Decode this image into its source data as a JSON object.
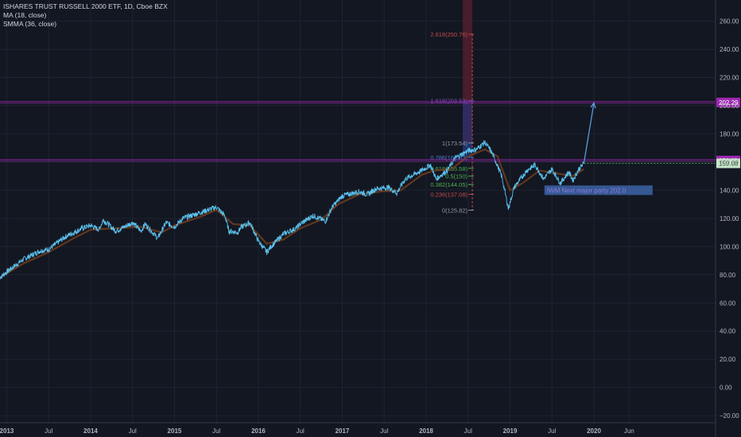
{
  "chart_data": {
    "type": "line",
    "title": "ISHARES TRUST RUSSELL 2000 ETF, 1D, Cboe BZX",
    "indicators": [
      {
        "name": "MA (18, close)",
        "color": "#6b3b1e"
      },
      {
        "name": "SMMA (36, close)",
        "color": "#8b5a2b"
      }
    ],
    "ylim": [
      -25,
      275
    ],
    "y_ticks": [
      "260.00",
      "240.00",
      "220.00",
      "200.00",
      "180.00",
      "160.00",
      "140.00",
      "120.00",
      "100.00",
      "80.00",
      "60.00",
      "40.00",
      "20.00",
      "0.00",
      "−20.00"
    ],
    "y_tick_values": [
      260,
      240,
      220,
      200,
      180,
      160,
      140,
      120,
      100,
      80,
      60,
      40,
      20,
      0,
      -20
    ],
    "xlim": [
      2012.92,
      2021.45
    ],
    "x_ticks": [
      {
        "label": "2013",
        "t": 2013.0,
        "bold": true
      },
      {
        "label": "Jul",
        "t": 2013.5,
        "bold": false
      },
      {
        "label": "2014",
        "t": 2014.0,
        "bold": true
      },
      {
        "label": "Jul",
        "t": 2014.5,
        "bold": false
      },
      {
        "label": "2015",
        "t": 2015.0,
        "bold": true
      },
      {
        "label": "Jul",
        "t": 2015.5,
        "bold": false
      },
      {
        "label": "2016",
        "t": 2016.0,
        "bold": true
      },
      {
        "label": "Jul",
        "t": 2016.5,
        "bold": false
      },
      {
        "label": "2017",
        "t": 2017.0,
        "bold": true
      },
      {
        "label": "Jul",
        "t": 2017.5,
        "bold": false
      },
      {
        "label": "2018",
        "t": 2018.0,
        "bold": true
      },
      {
        "label": "Jul",
        "t": 2018.5,
        "bold": false
      },
      {
        "label": "2019",
        "t": 2019.0,
        "bold": true
      },
      {
        "label": "Jul",
        "t": 2019.5,
        "bold": false
      },
      {
        "label": "2020",
        "t": 2020.0,
        "bold": true
      },
      {
        "label": "Jun",
        "t": 2020.42,
        "bold": false
      }
    ],
    "price_series": {
      "name": "IWM",
      "color": "#5bc0eb",
      "points": [
        [
          2012.92,
          78
        ],
        [
          2013.0,
          82
        ],
        [
          2013.2,
          91
        ],
        [
          2013.4,
          97
        ],
        [
          2013.5,
          98
        ],
        [
          2013.7,
          107
        ],
        [
          2013.9,
          113
        ],
        [
          2014.0,
          115
        ],
        [
          2014.1,
          112
        ],
        [
          2014.15,
          119
        ],
        [
          2014.3,
          111
        ],
        [
          2014.4,
          114
        ],
        [
          2014.5,
          117
        ],
        [
          2014.6,
          111
        ],
        [
          2014.65,
          116
        ],
        [
          2014.8,
          106
        ],
        [
          2014.9,
          117
        ],
        [
          2015.0,
          114
        ],
        [
          2015.1,
          120
        ],
        [
          2015.3,
          124
        ],
        [
          2015.45,
          127
        ],
        [
          2015.5,
          128
        ],
        [
          2015.6,
          122
        ],
        [
          2015.65,
          111
        ],
        [
          2015.75,
          110
        ],
        [
          2015.8,
          114
        ],
        [
          2015.9,
          117
        ],
        [
          2016.0,
          104
        ],
        [
          2016.1,
          96
        ],
        [
          2016.15,
          100
        ],
        [
          2016.3,
          109
        ],
        [
          2016.45,
          113
        ],
        [
          2016.5,
          116
        ],
        [
          2016.65,
          122
        ],
        [
          2016.8,
          118
        ],
        [
          2016.88,
          128
        ],
        [
          2017.0,
          136
        ],
        [
          2017.2,
          139
        ],
        [
          2017.3,
          137
        ],
        [
          2017.4,
          141
        ],
        [
          2017.55,
          142
        ],
        [
          2017.65,
          138
        ],
        [
          2017.75,
          148
        ],
        [
          2017.95,
          154
        ],
        [
          2018.05,
          158
        ],
        [
          2018.12,
          148
        ],
        [
          2018.25,
          154
        ],
        [
          2018.35,
          163
        ],
        [
          2018.5,
          168
        ],
        [
          2018.6,
          169
        ],
        [
          2018.7,
          174
        ],
        [
          2018.77,
          168
        ],
        [
          2018.82,
          162
        ],
        [
          2018.9,
          150
        ],
        [
          2018.98,
          127
        ],
        [
          2019.05,
          142
        ],
        [
          2019.2,
          154
        ],
        [
          2019.3,
          158
        ],
        [
          2019.4,
          148
        ],
        [
          2019.5,
          155
        ],
        [
          2019.6,
          145
        ],
        [
          2019.7,
          153
        ],
        [
          2019.75,
          147
        ],
        [
          2019.82,
          155
        ],
        [
          2019.88,
          159
        ]
      ]
    },
    "ma18": {
      "name": "MA (18, close)",
      "color": "#6b3b1e",
      "points": [
        [
          2012.92,
          78
        ],
        [
          2013.2,
          88
        ],
        [
          2013.5,
          96
        ],
        [
          2013.8,
          106
        ],
        [
          2014.0,
          112
        ],
        [
          2014.3,
          113
        ],
        [
          2014.6,
          114
        ],
        [
          2014.85,
          110
        ],
        [
          2015.0,
          115
        ],
        [
          2015.3,
          121
        ],
        [
          2015.5,
          126
        ],
        [
          2015.7,
          116
        ],
        [
          2015.9,
          115
        ],
        [
          2016.1,
          102
        ],
        [
          2016.3,
          105
        ],
        [
          2016.5,
          113
        ],
        [
          2016.75,
          119
        ],
        [
          2016.95,
          130
        ],
        [
          2017.2,
          137
        ],
        [
          2017.45,
          139
        ],
        [
          2017.7,
          140
        ],
        [
          2017.95,
          151
        ],
        [
          2018.1,
          154
        ],
        [
          2018.3,
          155
        ],
        [
          2018.5,
          164
        ],
        [
          2018.7,
          169
        ],
        [
          2018.85,
          164
        ],
        [
          2019.0,
          140
        ],
        [
          2019.15,
          145
        ],
        [
          2019.35,
          154
        ],
        [
          2019.55,
          152
        ],
        [
          2019.75,
          150
        ],
        [
          2019.88,
          155
        ]
      ]
    },
    "fibonacci": [
      {
        "label": "2.618(250.76)",
        "value": 250.76,
        "color": "#c44a4a"
      },
      {
        "label": "1.618(203.53)",
        "value": 203.53,
        "color": "#7b4fc4"
      },
      {
        "label": "1(173.54)",
        "value": 173.54,
        "color": "#9598a1"
      },
      {
        "label": "0.786(163.33)",
        "value": 163.33,
        "color": "#4a7ad0"
      },
      {
        "label": "0.618(155.58)",
        "value": 155.58,
        "color": "#4caf50"
      },
      {
        "label": "0.5(150)",
        "value": 150,
        "color": "#4caf50"
      },
      {
        "label": "0.382(144.05)",
        "value": 144.05,
        "color": "#4caf50"
      },
      {
        "label": "0.236(137.08)",
        "value": 137.08,
        "color": "#c44a4a"
      },
      {
        "label": "0(125.82)",
        "value": 125.82,
        "color": "#9598a1"
      }
    ],
    "fib_time_range": [
      2018.02,
      2018.55
    ],
    "horizontal_lines": [
      {
        "value": 202.29,
        "label": "202.29",
        "color": "#9c27b0"
      },
      {
        "value": 161.11,
        "label": "161.11",
        "color": "#9c27b0"
      }
    ],
    "price_badge": {
      "value": 159.08,
      "label": "159.08",
      "color": "#c8e6c9"
    },
    "projection_arrow": {
      "from": [
        2019.88,
        159
      ],
      "to": [
        2020.0,
        202
      ]
    },
    "annotation_note": {
      "text": "IWM Next major party 202.0",
      "at": [
        2019.6,
        140
      ]
    }
  }
}
